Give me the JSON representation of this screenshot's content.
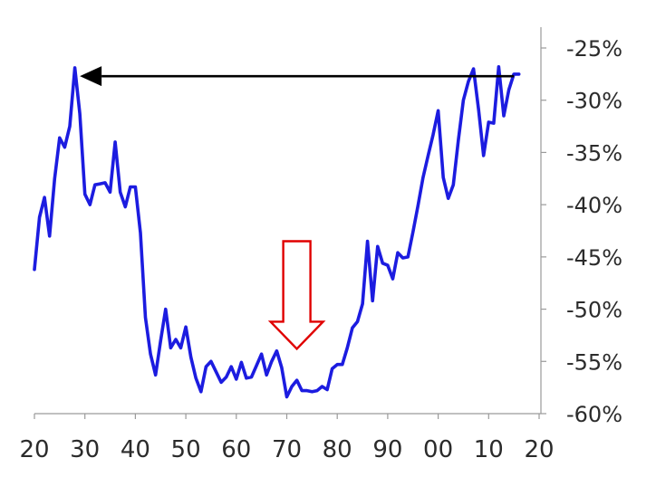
{
  "chart_data": {
    "type": "line",
    "title": "",
    "xlabel": "",
    "ylabel": "",
    "xlim": [
      1920,
      2020
    ],
    "ylim": [
      -60,
      -25
    ],
    "y_axis_side": "right",
    "grid": false,
    "x_tick_labels": [
      {
        "x": 1920,
        "label": "20"
      },
      {
        "x": 1930,
        "label": "30"
      },
      {
        "x": 1940,
        "label": "40"
      },
      {
        "x": 1950,
        "label": "50"
      },
      {
        "x": 1960,
        "label": "60"
      },
      {
        "x": 1970,
        "label": "70"
      },
      {
        "x": 1980,
        "label": "80"
      },
      {
        "x": 1990,
        "label": "90"
      },
      {
        "x": 2000,
        "label": "00"
      },
      {
        "x": 2010,
        "label": "10"
      },
      {
        "x": 2020,
        "label": "20"
      }
    ],
    "y_tick_labels": [
      {
        "y": -25,
        "label": "-25%"
      },
      {
        "y": -30,
        "label": "-30%"
      },
      {
        "y": -35,
        "label": "-35%"
      },
      {
        "y": -40,
        "label": "-40%"
      },
      {
        "y": -45,
        "label": "-45%"
      },
      {
        "y": -50,
        "label": "-50%"
      },
      {
        "y": -55,
        "label": "-55%"
      },
      {
        "y": -60,
        "label": "-60%"
      }
    ],
    "series": [
      {
        "color": "#1c1ce0",
        "x": [
          1920.0,
          1921.0,
          1922.0,
          1923.0,
          1924.0,
          1925.0,
          1926.0,
          1927.0,
          1928.0,
          1929.0,
          1930.0,
          1931.0,
          1932.0,
          1933.0,
          1934.0,
          1935.0,
          1936.0,
          1937.0,
          1938.0,
          1939.0,
          1940.0,
          1941.0,
          1942.0,
          1943.0,
          1944.0,
          1945.0,
          1946.0,
          1947.0,
          1948.0,
          1949.0,
          1950.0,
          1951.0,
          1952.0,
          1953.0,
          1954.0,
          1955.0,
          1956.0,
          1957.0,
          1958.0,
          1959.0,
          1960.0,
          1961.0,
          1962.0,
          1963.0,
          1964.0,
          1965.0,
          1966.0,
          1967.0,
          1968.0,
          1969.0,
          1970.0,
          1971.0,
          1972.0,
          1973.0,
          1974.0,
          1975.0,
          1976.0,
          1977.0,
          1978.0,
          1979.0,
          1980.0,
          1981.0,
          1982.0,
          1983.0,
          1984.0,
          1985.0,
          1986.0,
          1987.0,
          1988.0,
          1989.0,
          1990.0,
          1991.0,
          1992.0,
          1993.0,
          1994.0,
          1995.0,
          1996.0,
          1997.0,
          1998.0,
          1999.0,
          2000.0,
          2001.0,
          2002.0,
          2003.0,
          2004.0,
          2005.0,
          2006.0,
          2007.0,
          2008.0,
          2009.0,
          2010.0,
          2011.0,
          2012.0,
          2013.0,
          2014.0,
          2015.0,
          2016.0
        ],
        "values": [
          -46.2,
          -41.2,
          -39.3,
          -43.0,
          -37.5,
          -33.6,
          -34.5,
          -32.5,
          -26.9,
          -31.3,
          -39.0,
          -40.0,
          -38.1,
          -38.0,
          -37.9,
          -38.8,
          -34.0,
          -38.8,
          -40.2,
          -38.3,
          -38.3,
          -42.7,
          -50.8,
          -54.3,
          -56.3,
          -53.0,
          -50.0,
          -53.7,
          -52.9,
          -53.7,
          -51.7,
          -54.6,
          -56.6,
          -57.9,
          -55.5,
          -55.0,
          -56.0,
          -57.0,
          -56.5,
          -55.5,
          -56.7,
          -55.1,
          -56.6,
          -56.5,
          -55.4,
          -54.3,
          -56.3,
          -55.0,
          -54.0,
          -55.6,
          -58.4,
          -57.4,
          -56.8,
          -57.8,
          -57.8,
          -57.9,
          -57.8,
          -57.4,
          -57.7,
          -55.7,
          -55.3,
          -55.3,
          -53.7,
          -51.8,
          -51.2,
          -49.5,
          -43.5,
          -49.2,
          -44.0,
          -45.6,
          -45.8,
          -47.1,
          -44.6,
          -45.1,
          -45.0,
          -42.6,
          -40.1,
          -37.4,
          -35.3,
          -33.3,
          -31.0,
          -37.4,
          -39.4,
          -38.1,
          -33.8,
          -30.0,
          -28.2,
          -27.0,
          -30.9,
          -35.3,
          -32.1,
          -32.2,
          -26.8,
          -31.5,
          -29.0,
          -27.5,
          -27.5
        ]
      }
    ],
    "annotations": [
      {
        "type": "arrow",
        "direction": "left",
        "color": "#000000",
        "from": [
          2015,
          -27.7
        ],
        "to": [
          1929,
          -27.7
        ]
      },
      {
        "type": "hollow-arrow",
        "direction": "down",
        "color": "#e00000",
        "at_x": 1972,
        "from_y": -43.5,
        "to_y": -53.8
      }
    ]
  }
}
